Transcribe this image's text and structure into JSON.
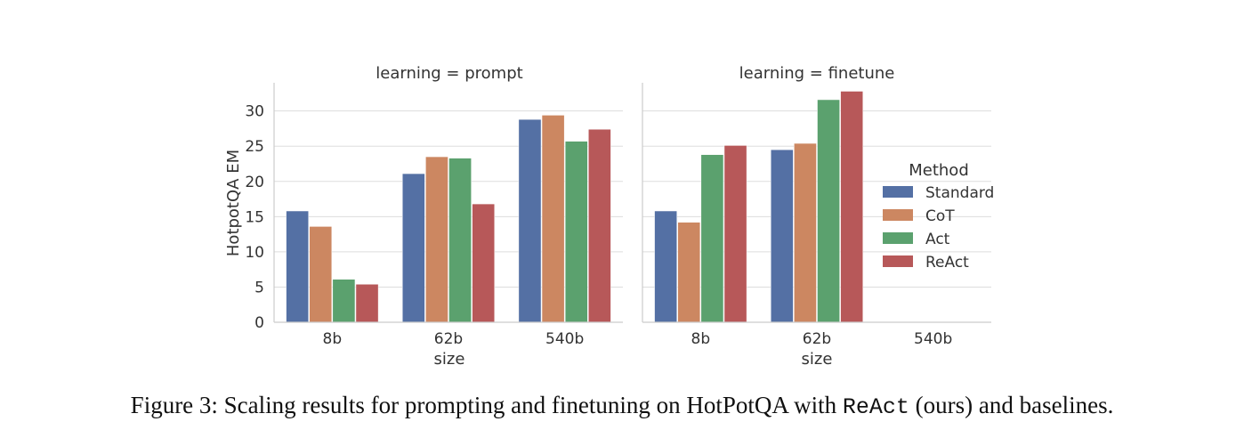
{
  "chart_data": {
    "type": "bar",
    "ylabel": "HotpotQA EM",
    "xlabel": "size",
    "ylim": [
      0,
      34
    ],
    "yticks": [
      0,
      5,
      10,
      15,
      20,
      25,
      30
    ],
    "grid": true,
    "categories": [
      "8b",
      "62b",
      "540b"
    ],
    "legend": {
      "title": "Method",
      "placement": "right",
      "entries": [
        "Standard",
        "CoT",
        "Act",
        "ReAct"
      ]
    },
    "colors": {
      "Standard": "#5470a4",
      "CoT": "#cc8761",
      "Act": "#5ba16e",
      "ReAct": "#b75859"
    },
    "panels": [
      {
        "title": "learning = prompt",
        "series": [
          {
            "name": "Standard",
            "values": [
              15.8,
              21.1,
              28.8
            ]
          },
          {
            "name": "CoT",
            "values": [
              13.6,
              23.5,
              29.4
            ]
          },
          {
            "name": "Act",
            "values": [
              6.1,
              23.3,
              25.7
            ]
          },
          {
            "name": "ReAct",
            "values": [
              5.4,
              16.8,
              27.4
            ]
          }
        ]
      },
      {
        "title": "learning = finetune",
        "series": [
          {
            "name": "Standard",
            "values": [
              15.8,
              24.5,
              null
            ]
          },
          {
            "name": "CoT",
            "values": [
              14.2,
              25.4,
              null
            ]
          },
          {
            "name": "Act",
            "values": [
              23.8,
              31.6,
              null
            ]
          },
          {
            "name": "ReAct",
            "values": [
              25.1,
              32.8,
              null
            ]
          }
        ]
      }
    ]
  },
  "caption": {
    "prefix": "Figure 3: Scaling results for prompting and finetuning on HotPotQA with",
    "code": "ReAct",
    "suffix": "(ours) and baselines."
  }
}
